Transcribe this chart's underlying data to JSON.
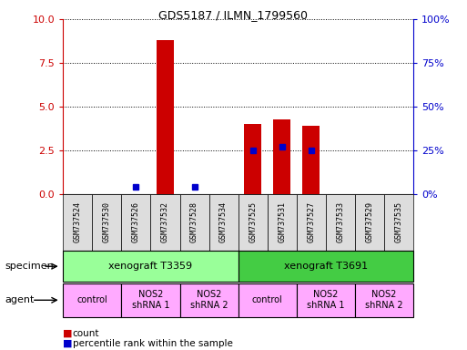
{
  "title": "GDS5187 / ILMN_1799560",
  "samples": [
    "GSM737524",
    "GSM737530",
    "GSM737526",
    "GSM737532",
    "GSM737528",
    "GSM737534",
    "GSM737525",
    "GSM737531",
    "GSM737527",
    "GSM737533",
    "GSM737529",
    "GSM737535"
  ],
  "count_values": [
    0,
    0,
    0,
    8.8,
    0,
    0,
    4.0,
    4.3,
    3.9,
    0,
    0,
    0
  ],
  "percentile_values": [
    null,
    null,
    4,
    null,
    4,
    null,
    25,
    27,
    25,
    null,
    null,
    null
  ],
  "ylim_left": [
    0,
    10
  ],
  "ylim_right": [
    0,
    100
  ],
  "yticks_left": [
    0,
    2.5,
    5,
    7.5,
    10
  ],
  "yticks_right": [
    0,
    25,
    50,
    75,
    100
  ],
  "bar_color": "#cc0000",
  "percentile_color": "#0000cc",
  "specimen_groups": [
    {
      "label": "xenograft T3359",
      "start": 0,
      "end": 6,
      "color": "#99ff99"
    },
    {
      "label": "xenograft T3691",
      "start": 6,
      "end": 12,
      "color": "#44cc44"
    }
  ],
  "agent_groups": [
    {
      "label": "control",
      "start": 0,
      "end": 2,
      "color": "#ffaaff"
    },
    {
      "label": "NOS2\nshRNA 1",
      "start": 2,
      "end": 4,
      "color": "#ffaaff"
    },
    {
      "label": "NOS2\nshRNA 2",
      "start": 4,
      "end": 6,
      "color": "#ffaaff"
    },
    {
      "label": "control",
      "start": 6,
      "end": 8,
      "color": "#ffaaff"
    },
    {
      "label": "NOS2\nshRNA 1",
      "start": 8,
      "end": 10,
      "color": "#ffaaff"
    },
    {
      "label": "NOS2\nshRNA 2",
      "start": 10,
      "end": 12,
      "color": "#ffaaff"
    }
  ],
  "background_color": "#ffffff",
  "specimen_label": "specimen",
  "agent_label": "agent",
  "legend_count_label": "count",
  "legend_percentile_label": "percentile rank within the sample",
  "sample_box_color": "#dddddd",
  "left_axis_color": "#cc0000",
  "right_axis_color": "#0000cc"
}
